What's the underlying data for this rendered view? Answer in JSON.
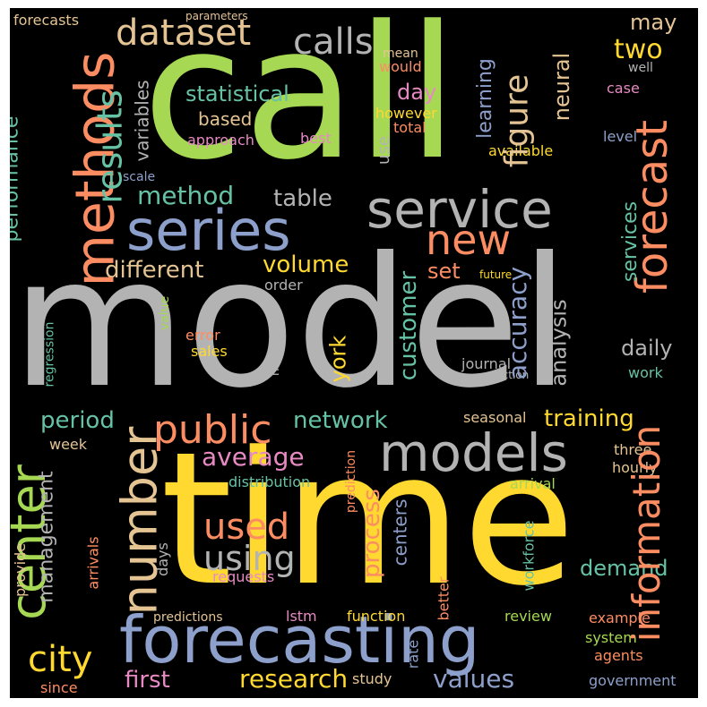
{
  "palette": {
    "background": "#000000",
    "yellow": "#ffd92f",
    "green": "#a6d854",
    "gray": "#b3b3b3",
    "salmon": "#fc8d62",
    "blue": "#8da0cb",
    "pink": "#e78ac3",
    "teal": "#66c2a5",
    "tan": "#e5c494"
  },
  "words": {
    "model": "model",
    "call": "call",
    "time": "time",
    "forecasting": "forecasting",
    "service": "service",
    "series": "series",
    "models": "models",
    "methods": "methods",
    "center": "center",
    "number": "number",
    "forecast": "forecast",
    "information": "information",
    "public": "public",
    "city": "city",
    "used": "used",
    "using": "using",
    "new": "new",
    "dataset": "dataset",
    "calls": "calls",
    "results": "results",
    "figure": "figure",
    "average": "average",
    "accuracy": "accuracy",
    "different": "different",
    "research": "research",
    "values": "values",
    "first": "first",
    "network": "network",
    "training": "training",
    "customer": "customer",
    "two": "two",
    "statistical": "statistical",
    "method": "method",
    "volume": "volume",
    "process": "process",
    "period": "period",
    "demand": "demand",
    "management": "management",
    "york": "york",
    "table": "table",
    "performance": "performance",
    "analysis": "analysis",
    "neural": "neural",
    "learning": "learning",
    "daily": "daily",
    "services": "services",
    "centers": "centers",
    "set": "set",
    "may": "may",
    "day": "day",
    "based": "based",
    "variables": "variables",
    "forecasts": "forecasts",
    "parameters": "parameters",
    "mean": "mean",
    "would": "would",
    "well": "well",
    "case": "case",
    "however": "however",
    "total": "total",
    "use": "use",
    "approach": "approach",
    "best": "best",
    "available": "available",
    "level": "level",
    "scale": "scale",
    "future": "future",
    "order": "order",
    "value": "value",
    "error": "error",
    "sales": "sales",
    "networks": "networks",
    "journal": "journal",
    "section": "section",
    "work": "work",
    "regression": "regression",
    "seasonal": "seasonal",
    "week": "week",
    "three": "three",
    "hourly": "hourly",
    "arrival": "arrival",
    "distribution": "distribution",
    "prediction": "prediction",
    "arrivals": "arrivals",
    "workforce": "workforce",
    "provide": "provide",
    "days": "days",
    "requests": "requests",
    "predictions": "predictions",
    "lstm": "lstm",
    "function": "function",
    "review": "review",
    "example": "example",
    "system": "system",
    "rate": "rate",
    "better": "better",
    "agents": "agents",
    "since": "since",
    "study": "study",
    "government": "government"
  }
}
